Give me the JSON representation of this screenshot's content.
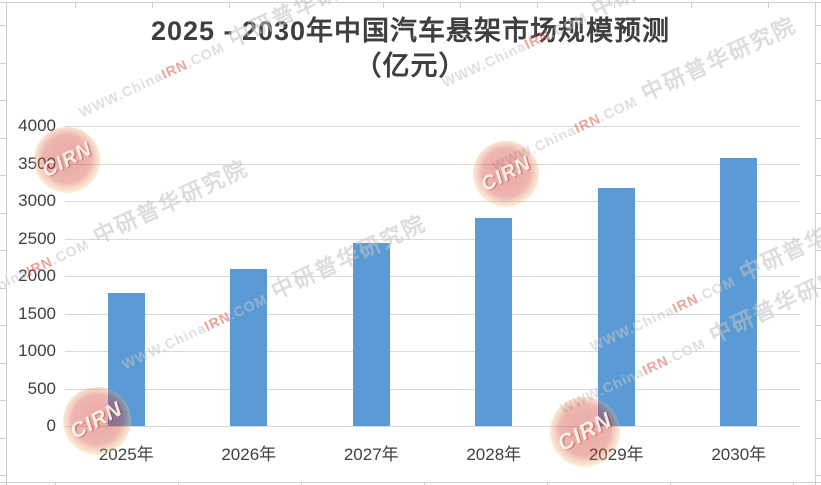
{
  "chart_data": {
    "type": "bar",
    "title": "2025 - 2030年中国汽车悬架市场规模预测",
    "subtitle": "（亿元）",
    "categories": [
      "2025年",
      "2026年",
      "2027年",
      "2028年",
      "2029年",
      "2030年"
    ],
    "values": [
      1780,
      2090,
      2440,
      2780,
      3180,
      3580
    ],
    "xlabel": "",
    "ylabel": "",
    "ylim": [
      0,
      4000
    ],
    "ytick_interval": 500,
    "ytick_labels": [
      "0",
      "500",
      "1000",
      "1500",
      "2000",
      "2500",
      "3000",
      "3500",
      "4000"
    ],
    "grid": true,
    "legend": "none",
    "bar_color": "#5B9BD5",
    "gridline_color": "#D9D9D9",
    "axis_text_color": "#404040",
    "title_color": "#3F3F3F"
  },
  "watermark": {
    "site_prefix": "WWW.China",
    "site_highlight": "IRN",
    "site_suffix": ".COM",
    "agency_name": "中研普华研究院",
    "stamp_text": "CIRN",
    "text_color": "#C6C6C6",
    "highlight_color": "#E25549",
    "stamp_red": "#CC3328"
  }
}
